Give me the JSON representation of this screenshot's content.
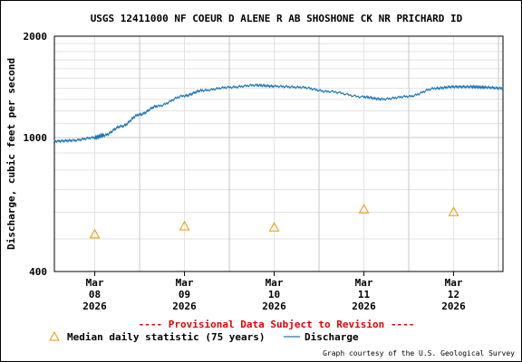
{
  "chart_data": {
    "type": "line",
    "title": "USGS 12411000 NF COEUR D ALENE R AB SHOSHONE CK NR PRICHARD ID",
    "ylabel": "Discharge, cubic feet per second",
    "xlabel": "",
    "y_scale": "log",
    "ylim": [
      400,
      2000
    ],
    "y_tick_labels": [
      "2000",
      "1000",
      "400"
    ],
    "grid": true,
    "x_ticks": [
      {
        "line1": "Mar",
        "line2": "08",
        "line3": "2026"
      },
      {
        "line1": "Mar",
        "line2": "09",
        "line3": "2026"
      },
      {
        "line1": "Mar",
        "line2": "10",
        "line3": "2026"
      },
      {
        "line1": "Mar",
        "line2": "11",
        "line3": "2026"
      },
      {
        "line1": "Mar",
        "line2": "12",
        "line3": "2026"
      }
    ],
    "xlim_days_from_mar08_midnight": [
      -0.45,
      4.55
    ],
    "series": [
      {
        "name": "Discharge",
        "color": "#1f77b4",
        "x_days_from_mar08_midnight": [
          -0.45,
          -0.25,
          0.0,
          0.1,
          0.3,
          0.5,
          0.7,
          1.0,
          1.2,
          1.5,
          1.8,
          2.0,
          2.3,
          2.6,
          3.0,
          3.2,
          3.5,
          3.8,
          4.0,
          4.2,
          4.35,
          4.55
        ],
        "values": [
          975,
          980,
          1000,
          1015,
          1080,
          1170,
          1240,
          1330,
          1380,
          1410,
          1430,
          1420,
          1410,
          1370,
          1320,
          1300,
          1325,
          1400,
          1415,
          1415,
          1410,
          1400
        ]
      },
      {
        "name": "Median daily statistic (75 years)",
        "color": "#e69b00",
        "x_days_from_mar08_midnight": [
          0,
          1,
          2,
          3,
          4
        ],
        "values": [
          516,
          545,
          541,
          612,
          601
        ]
      }
    ]
  },
  "provisional_note": "---- Provisional Data Subject to Revision ----",
  "legend": {
    "median_label": "Median daily statistic (75 years)",
    "discharge_label": "Discharge"
  },
  "credit": "Graph courtesy of the U.S. Geological Survey",
  "colors": {
    "provisional": "#e00000",
    "grid_major": "#c8c8c8",
    "grid_minor": "#e3e3e3"
  }
}
